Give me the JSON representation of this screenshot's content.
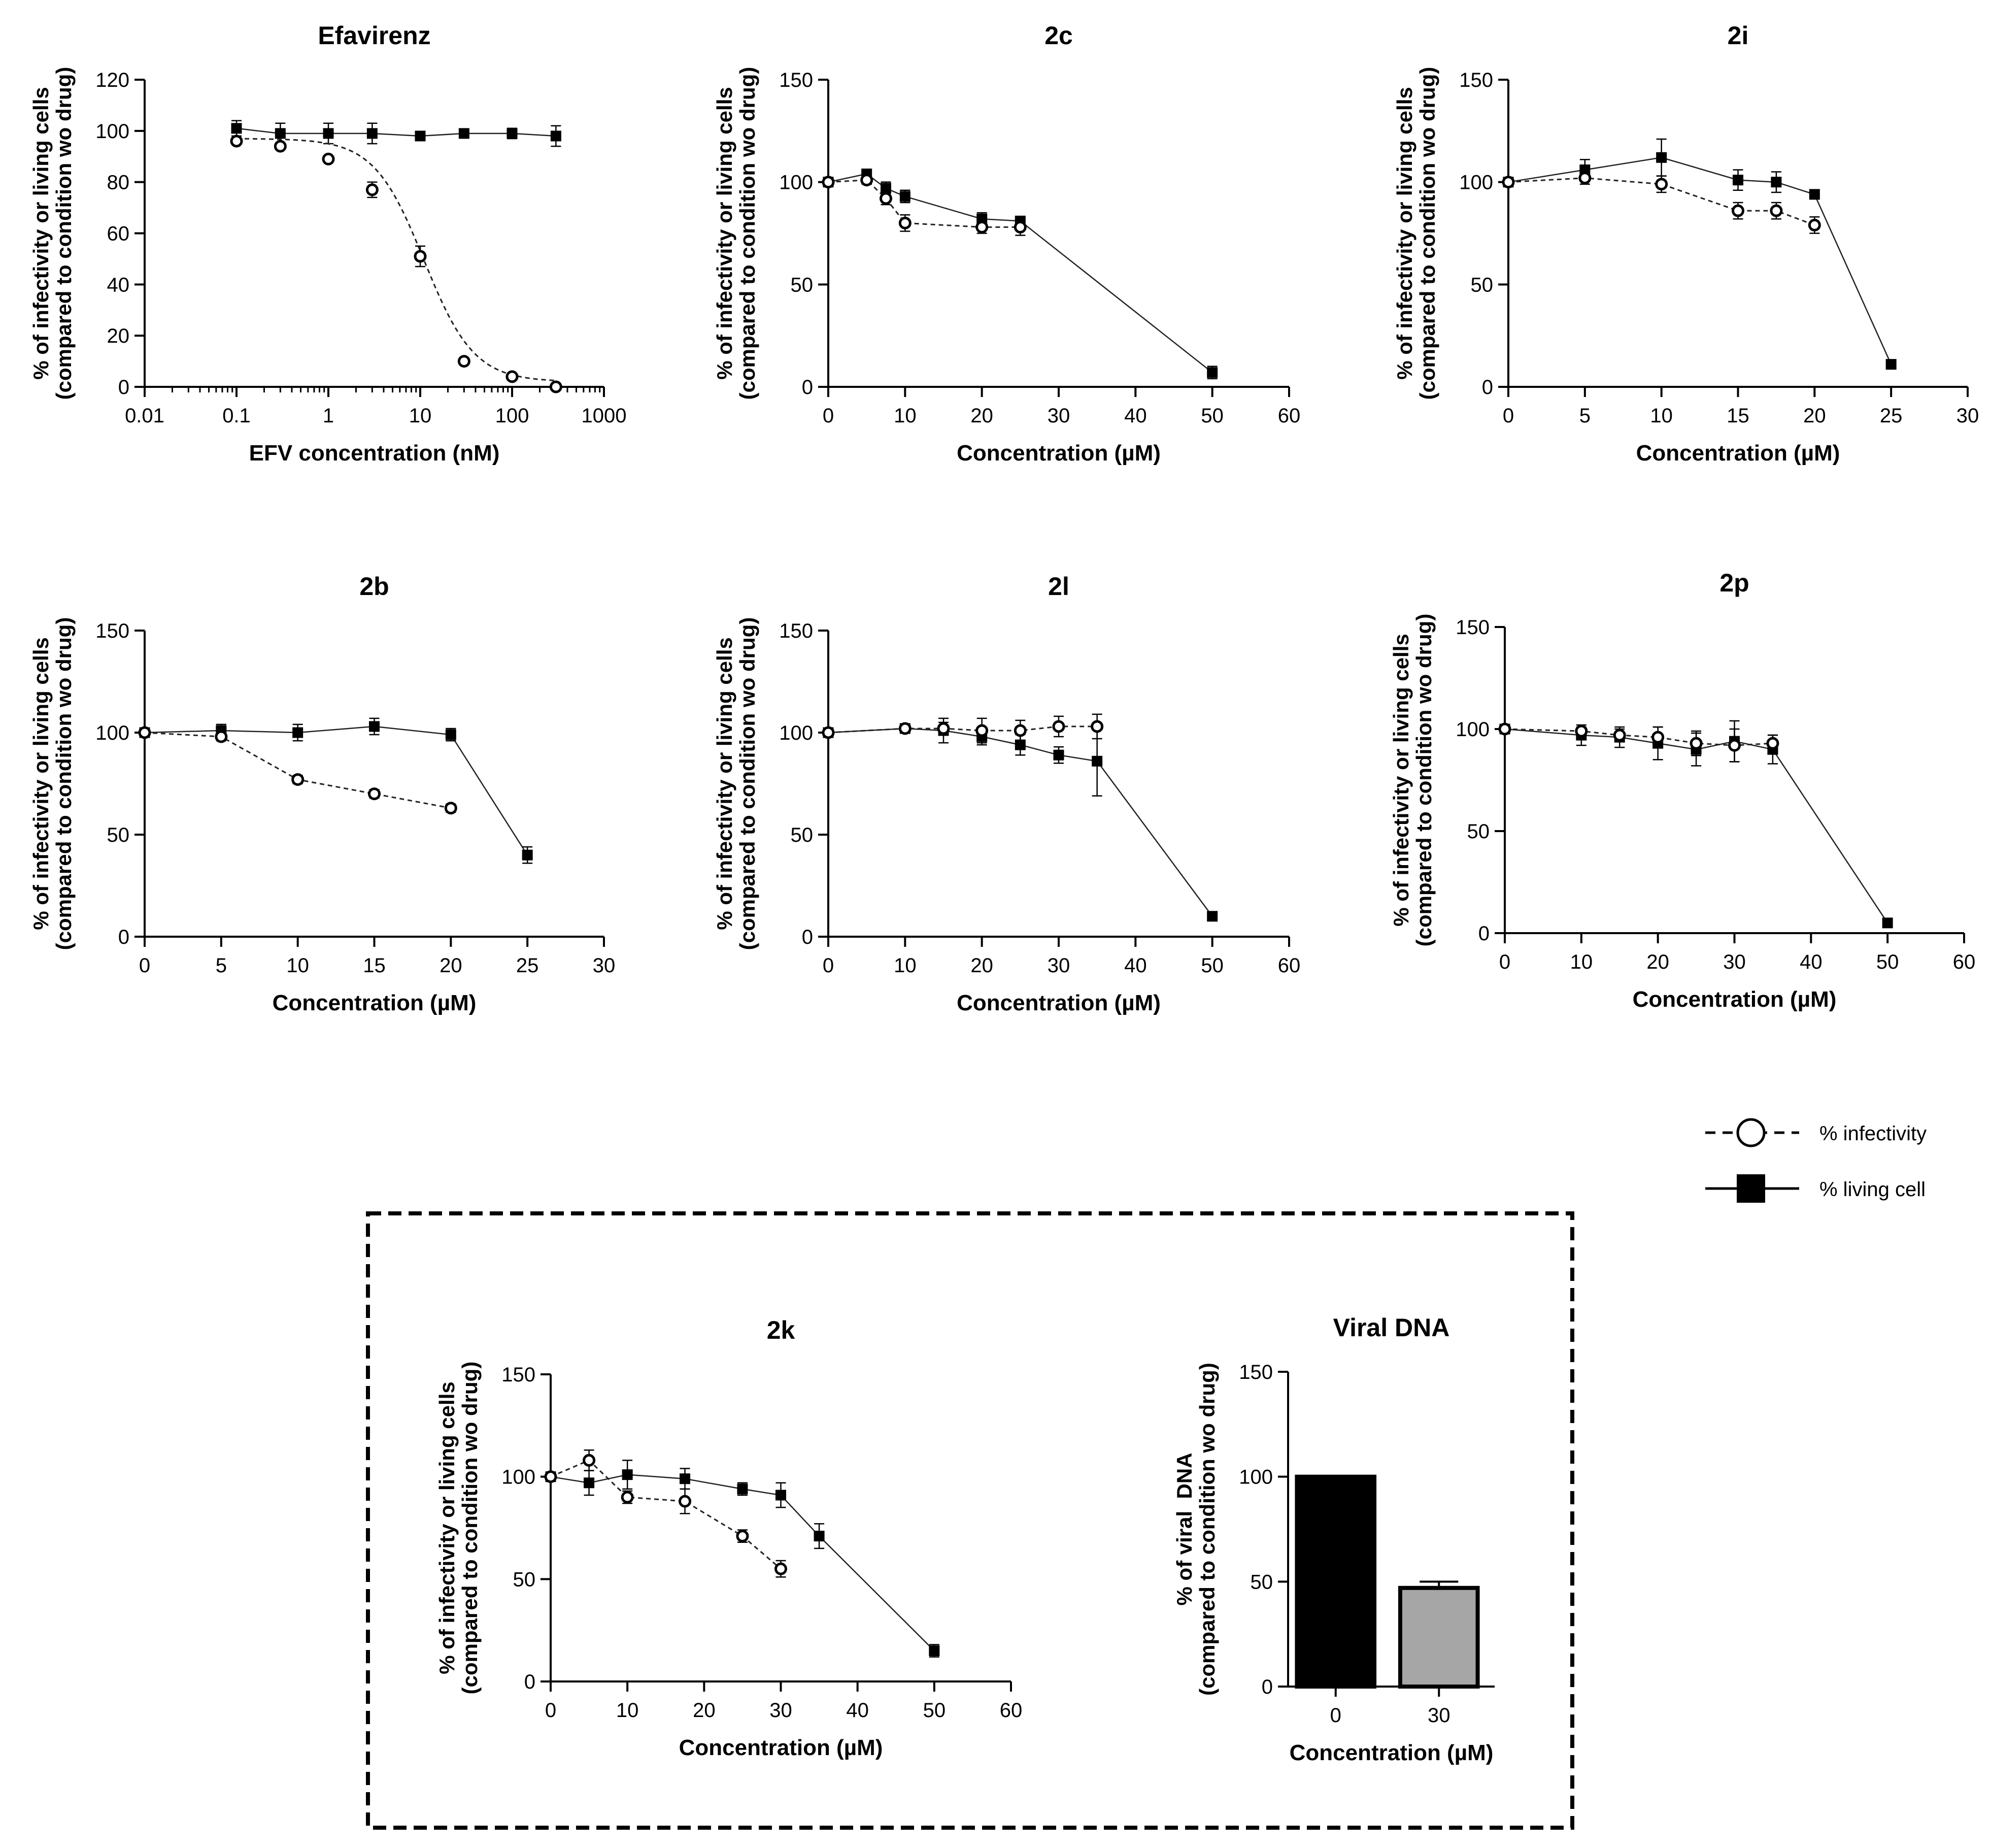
{
  "legend": {
    "infectivity_label": "% infectivity",
    "living_label": "% living cell"
  },
  "chart_data": [
    {
      "id": "efavirenz",
      "type": "line",
      "title": "Efavirenz",
      "xlabel": "EFV concentration (nM)",
      "xscale": "log",
      "xlim": [
        0.01,
        1000
      ],
      "xticks": [
        0.01,
        0.1,
        1,
        10,
        100,
        1000
      ],
      "xtick_labels": [
        "0.01",
        "0.1",
        "1",
        "10",
        "100",
        "1000"
      ],
      "ylabel_lines": [
        "% of infectivity or living cells",
        "(compared to condition wo drug)"
      ],
      "ylim": [
        0,
        120
      ],
      "yticks": [
        0,
        20,
        40,
        60,
        80,
        100,
        120
      ],
      "series": [
        {
          "name": "% infectivity",
          "style": "dashed-open-circle",
          "fit": "sigmoid",
          "ic50": 11,
          "hill": 1.6,
          "top": 97,
          "bottom": 2,
          "x": [
            0.1,
            0.3,
            1,
            3,
            10,
            30,
            100,
            300
          ],
          "y": [
            96,
            94,
            89,
            77,
            51,
            10,
            4,
            0
          ],
          "err": [
            0,
            0,
            0,
            3,
            4,
            0,
            0,
            0
          ]
        },
        {
          "name": "% living cell",
          "style": "solid-filled-square",
          "x": [
            0.1,
            0.3,
            1,
            3,
            10,
            30,
            100,
            300
          ],
          "y": [
            101,
            99,
            99,
            99,
            98,
            99,
            99,
            98
          ],
          "err": [
            3,
            4,
            4,
            4,
            1,
            1,
            2,
            4
          ]
        }
      ]
    },
    {
      "id": "2c",
      "type": "line",
      "title": "2c",
      "xlabel": "Concentration (µM)",
      "xscale": "linear",
      "xlim": [
        0,
        60
      ],
      "xticks": [
        0,
        10,
        20,
        30,
        40,
        50,
        60
      ],
      "xtick_labels": [
        "0",
        "10",
        "20",
        "30",
        "40",
        "50",
        "60"
      ],
      "ylabel_lines": [
        "% of infectivity or living cells",
        "(compared to condition wo drug)"
      ],
      "ylim": [
        0,
        150
      ],
      "yticks": [
        0,
        50,
        100,
        150
      ],
      "series": [
        {
          "name": "% infectivity",
          "style": "dashed-open-circle",
          "x": [
            0,
            5,
            7.5,
            10,
            20,
            25
          ],
          "y": [
            100,
            101,
            92,
            80,
            78,
            78
          ],
          "err": [
            0,
            2,
            3,
            4,
            3,
            4
          ]
        },
        {
          "name": "% living cell",
          "style": "solid-filled-square",
          "x": [
            0,
            5,
            7.5,
            10,
            20,
            25,
            50
          ],
          "y": [
            100,
            104,
            97,
            93,
            82,
            81,
            7
          ],
          "err": [
            0,
            2,
            3,
            3,
            3,
            2,
            3
          ]
        }
      ]
    },
    {
      "id": "2i",
      "type": "line",
      "title": "2i",
      "xlabel": "Concentration (µM)",
      "xscale": "linear",
      "xlim": [
        0,
        30
      ],
      "xticks": [
        0,
        5,
        10,
        15,
        20,
        25,
        30
      ],
      "xtick_labels": [
        "0",
        "5",
        "10",
        "15",
        "20",
        "25",
        "30"
      ],
      "ylabel_lines": [
        "% of infectivity or living cells",
        "(compared to condition wo drug)"
      ],
      "ylim": [
        0,
        150
      ],
      "yticks": [
        0,
        50,
        100,
        150
      ],
      "series": [
        {
          "name": "% infectivity",
          "style": "dashed-open-circle",
          "x": [
            0,
            5,
            10,
            15,
            17.5,
            20
          ],
          "y": [
            100,
            102,
            99,
            86,
            86,
            79
          ],
          "err": [
            0,
            3,
            4,
            4,
            4,
            4
          ]
        },
        {
          "name": "% living cell",
          "style": "solid-filled-square",
          "x": [
            0,
            5,
            10,
            15,
            17.5,
            20,
            25
          ],
          "y": [
            100,
            106,
            112,
            101,
            100,
            94,
            11
          ],
          "err": [
            0,
            5,
            9,
            5,
            5,
            2,
            2
          ]
        }
      ]
    },
    {
      "id": "2b",
      "type": "line",
      "title": "2b",
      "xlabel": "Concentration (µM)",
      "xscale": "linear",
      "xlim": [
        0,
        30
      ],
      "xticks": [
        0,
        5,
        10,
        15,
        20,
        25,
        30
      ],
      "xtick_labels": [
        "0",
        "5",
        "10",
        "15",
        "20",
        "25",
        "30"
      ],
      "ylabel_lines": [
        "% of infectivity or living cells",
        "(compared to condition wo drug)"
      ],
      "ylim": [
        0,
        150
      ],
      "yticks": [
        0,
        50,
        100,
        150
      ],
      "series": [
        {
          "name": "% infectivity",
          "style": "dashed-open-circle",
          "x": [
            0,
            5,
            10,
            15,
            20
          ],
          "y": [
            100,
            98,
            77,
            70,
            63
          ],
          "err": [
            0,
            2,
            2,
            2,
            2
          ]
        },
        {
          "name": "% living cell",
          "style": "solid-filled-square",
          "x": [
            0,
            5,
            10,
            15,
            20,
            25
          ],
          "y": [
            100,
            101,
            100,
            103,
            99,
            40
          ],
          "err": [
            0,
            3,
            4,
            4,
            3,
            4
          ]
        }
      ]
    },
    {
      "id": "2l",
      "type": "line",
      "title": "2l",
      "xlabel": "Concentration (µM)",
      "xscale": "linear",
      "xlim": [
        0,
        60
      ],
      "xticks": [
        0,
        10,
        20,
        30,
        40,
        50,
        60
      ],
      "xtick_labels": [
        "0",
        "10",
        "20",
        "30",
        "40",
        "50",
        "60"
      ],
      "ylabel_lines": [
        "% of infectivity or living cells",
        "(compared to condition wo drug)"
      ],
      "ylim": [
        0,
        150
      ],
      "yticks": [
        0,
        50,
        100,
        150
      ],
      "series": [
        {
          "name": "% infectivity",
          "style": "dashed-open-circle",
          "x": [
            0,
            10,
            15,
            20,
            25,
            30,
            35
          ],
          "y": [
            100,
            102,
            102,
            101,
            101,
            103,
            103
          ],
          "err": [
            0,
            2,
            3,
            6,
            5,
            5,
            6
          ]
        },
        {
          "name": "% living cell",
          "style": "solid-filled-square",
          "x": [
            0,
            10,
            15,
            20,
            25,
            30,
            35,
            50
          ],
          "y": [
            100,
            102,
            101,
            98,
            94,
            89,
            86,
            10
          ],
          "err": [
            0,
            2,
            6,
            4,
            5,
            4,
            17,
            1
          ]
        }
      ]
    },
    {
      "id": "2p",
      "type": "line",
      "title": "2p",
      "xlabel": "Concentration (µM)",
      "xscale": "linear",
      "xlim": [
        0,
        60
      ],
      "xticks": [
        0,
        10,
        20,
        30,
        40,
        50,
        60
      ],
      "xtick_labels": [
        "0",
        "10",
        "20",
        "30",
        "40",
        "50",
        "60"
      ],
      "ylabel_lines": [
        "% of infectivity or living cells",
        "(compared to condition wo drug)"
      ],
      "ylim": [
        0,
        150
      ],
      "yticks": [
        0,
        50,
        100,
        150
      ],
      "series": [
        {
          "name": "% infectivity",
          "style": "dashed-open-circle",
          "x": [
            0,
            10,
            15,
            20,
            25,
            30,
            35
          ],
          "y": [
            100,
            99,
            97,
            96,
            93,
            92,
            93
          ],
          "err": [
            0,
            2,
            3,
            5,
            6,
            8,
            4
          ]
        },
        {
          "name": "% living cell",
          "style": "solid-filled-square",
          "x": [
            0,
            10,
            15,
            20,
            25,
            30,
            35,
            50
          ],
          "y": [
            100,
            97,
            96,
            93,
            90,
            94,
            90,
            5
          ],
          "err": [
            0,
            5,
            5,
            8,
            8,
            10,
            7,
            1
          ]
        }
      ]
    },
    {
      "id": "2k",
      "type": "line",
      "title": "2k",
      "xlabel": "Concentration (µM)",
      "xscale": "linear",
      "xlim": [
        0,
        60
      ],
      "xticks": [
        0,
        10,
        20,
        30,
        40,
        50,
        60
      ],
      "xtick_labels": [
        "0",
        "10",
        "20",
        "30",
        "40",
        "50",
        "60"
      ],
      "ylabel_lines": [
        "% of infectivity or living cells",
        "(compared to condition wo drug)"
      ],
      "ylim": [
        0,
        150
      ],
      "yticks": [
        0,
        50,
        100,
        150
      ],
      "series": [
        {
          "name": "% infectivity",
          "style": "dashed-open-circle",
          "x": [
            0,
            5,
            10,
            17.5,
            25,
            30
          ],
          "y": [
            100,
            108,
            90,
            88,
            71,
            55
          ],
          "err": [
            0,
            5,
            3,
            6,
            3,
            4
          ]
        },
        {
          "name": "% living cell",
          "style": "solid-filled-square",
          "x": [
            0,
            5,
            10,
            17.5,
            25,
            30,
            35,
            50
          ],
          "y": [
            100,
            97,
            101,
            99,
            94,
            91,
            71,
            15
          ],
          "err": [
            0,
            6,
            7,
            5,
            3,
            6,
            6,
            3
          ]
        }
      ]
    },
    {
      "id": "viral-dna",
      "type": "bar",
      "title": "Viral DNA",
      "xlabel": "Concentration (µM)",
      "ylabel_lines": [
        "% of viral  DNA",
        "(compared to condition wo drug)"
      ],
      "ylim": [
        0,
        150
      ],
      "yticks": [
        0,
        50,
        100,
        150
      ],
      "categories": [
        "0",
        "30"
      ],
      "values": [
        100,
        47
      ],
      "err": [
        0,
        3
      ],
      "colors": [
        "#000000",
        "#a6a6a6"
      ]
    }
  ]
}
